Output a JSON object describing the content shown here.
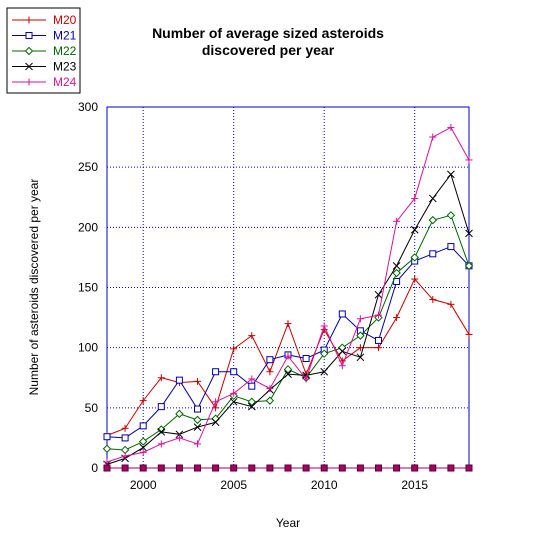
{
  "chart_data": {
    "type": "line",
    "title_lines": [
      "Number of average sized asteroids",
      "discovered per year"
    ],
    "xlabel": "Year",
    "ylabel": "Number of asteroids discovered per year",
    "xlim": [
      1998,
      2018
    ],
    "ylim": [
      0,
      300
    ],
    "x_ticks": [
      2000,
      2005,
      2010,
      2015
    ],
    "y_ticks": [
      0,
      50,
      100,
      150,
      200,
      250,
      300
    ],
    "grid": true,
    "legend_position": "top-left",
    "x": [
      1998,
      1999,
      2000,
      2001,
      2002,
      2003,
      2004,
      2005,
      2006,
      2007,
      2008,
      2009,
      2010,
      2011,
      2012,
      2013,
      2014,
      2015,
      2016,
      2017,
      2018
    ],
    "series": [
      {
        "name": "M20",
        "color": "#cc0000",
        "marker": "plus",
        "values": [
          27,
          33,
          56,
          75,
          71,
          72,
          50,
          99,
          110,
          80,
          120,
          78,
          115,
          89,
          100,
          100,
          125,
          157,
          140,
          136,
          111
        ]
      },
      {
        "name": "M21",
        "color": "#0000aa",
        "marker": "square",
        "values": [
          26,
          25,
          35,
          51,
          73,
          49,
          80,
          80,
          68,
          90,
          94,
          91,
          98,
          128,
          114,
          106,
          155,
          172,
          178,
          184,
          168
        ]
      },
      {
        "name": "M22",
        "color": "#006600",
        "marker": "diamond",
        "values": [
          16,
          15,
          22,
          32,
          45,
          40,
          41,
          60,
          55,
          56,
          82,
          75,
          95,
          100,
          110,
          125,
          162,
          175,
          206,
          210,
          168
        ]
      },
      {
        "name": "M23",
        "color": "#000000",
        "marker": "x",
        "values": [
          3,
          8,
          17,
          30,
          28,
          34,
          38,
          55,
          51,
          65,
          78,
          77,
          80,
          97,
          92,
          144,
          168,
          198,
          224,
          244,
          195
        ]
      },
      {
        "name": "M24",
        "color": "#dd1199",
        "marker": "plus",
        "values": [
          5,
          10,
          13,
          20,
          25,
          20,
          55,
          62,
          74,
          66,
          93,
          74,
          118,
          85,
          124,
          127,
          205,
          224,
          275,
          283,
          256
        ]
      }
    ],
    "baseline_series_color": "#aa0066"
  }
}
